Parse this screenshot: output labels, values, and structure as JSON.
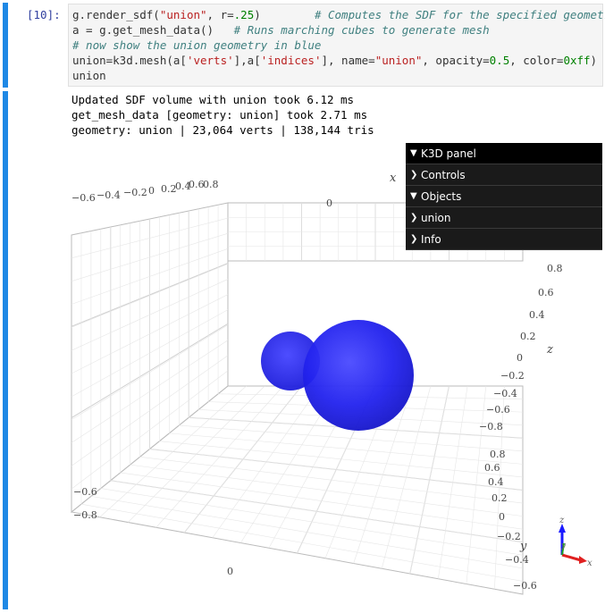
{
  "cell_in": {
    "prompt": "[10]:",
    "code": [
      {
        "parts": [
          [
            "g.render_sdf(",
            "kw"
          ],
          [
            "\"union\"",
            "str"
          ],
          [
            ", r=",
            "kw"
          ],
          [
            ".25",
            "num"
          ],
          [
            ")",
            "kw"
          ],
          [
            "        # Computes the SDF for the specified geometry",
            "cm"
          ]
        ]
      },
      {
        "parts": [
          [
            "a = g.get_mesh_data()",
            "kw"
          ],
          [
            "   # Runs marching cubes to generate mesh",
            "cm"
          ]
        ]
      },
      {
        "parts": [
          [
            "# now show the union geometry in blue",
            "cm"
          ]
        ]
      },
      {
        "parts": [
          [
            "union=k3d.mesh(a[",
            "kw"
          ],
          [
            "'verts'",
            "str"
          ],
          [
            "],a[",
            "kw"
          ],
          [
            "'indices'",
            "str"
          ],
          [
            "], name=",
            "kw"
          ],
          [
            "\"union\"",
            "str"
          ],
          [
            ", opacity=",
            "kw"
          ],
          [
            "0.5",
            "num"
          ],
          [
            ", color=",
            "kw"
          ],
          [
            "0xff",
            "num"
          ],
          [
            ")",
            "kw"
          ]
        ]
      },
      {
        "parts": [
          [
            "union",
            "kw"
          ]
        ]
      }
    ]
  },
  "cell_out": {
    "lines": [
      "Updated SDF volume with union took 6.12 ms",
      "get_mesh_data [geometry: union] took 2.71 ms",
      "geometry: union | 23,064 verts | 138,144 tris"
    ]
  },
  "k3d_panel": {
    "title": "K3D panel",
    "items": [
      {
        "label": "Controls",
        "chevron": "right"
      },
      {
        "label": "Objects",
        "chevron": "down"
      },
      {
        "label": "union",
        "chevron": "right"
      },
      {
        "label": "Info",
        "chevron": "right"
      }
    ]
  },
  "viewer": {
    "mesh_color": "#1a1aff",
    "axis_names": {
      "x": "x",
      "y": "y",
      "z": "z"
    },
    "top_x_ticks": [
      "−0.6",
      "−0.4",
      "−0.2",
      "0",
      "0.2",
      "0.4",
      "0.6",
      "0.8"
    ],
    "top_zero": "0",
    "right_z_ticks": [
      "0.8",
      "0.6",
      "0.4",
      "0.2",
      "0",
      "−0.2",
      "−0.4",
      "−0.6",
      "−0.8"
    ],
    "right_y_ticks": [
      "0.8",
      "0.6",
      "0.4",
      "0.2",
      "0",
      "−0.2",
      "−0.4",
      "−0.6"
    ],
    "left_ticks": [
      "−0.6",
      "−0.8"
    ],
    "bottom_zero": "0",
    "gizmo": {
      "x": "x",
      "y": "y",
      "z": "z"
    }
  }
}
